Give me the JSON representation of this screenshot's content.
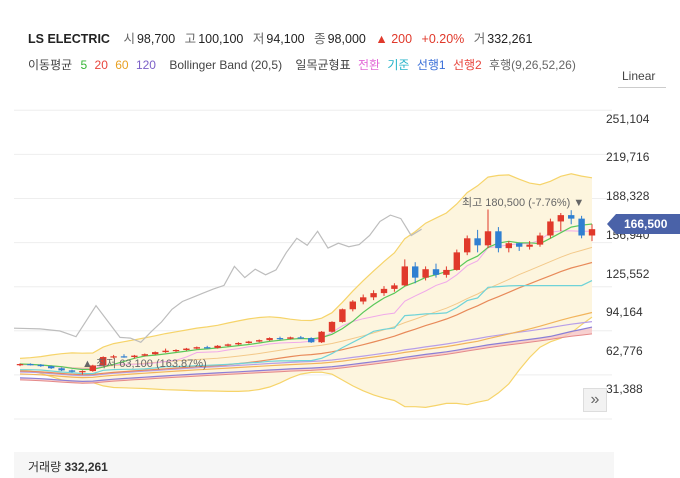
{
  "header": {
    "name": "LS ELECTRIC",
    "open_label": "시",
    "open": "98,700",
    "high_label": "고",
    "high": "100,100",
    "low_label": "저",
    "low": "94,100",
    "close_label": "종",
    "close": "98,000",
    "change_arrow": "▲",
    "change": "200",
    "change_pct": "+0.20%",
    "volume_label": "거",
    "volume": "332,261"
  },
  "indicators": {
    "ma_label": "이동평균",
    "ma5": "5",
    "ma20": "20",
    "ma60": "60",
    "ma120": "120",
    "bb": "Bollinger Band (20,5)",
    "ichimoku_label": "일목균형표",
    "ich_conv": "전환",
    "ich_base": "기준",
    "ich_lead1": "선행1",
    "ich_lead2": "선행2",
    "ich_lag": "후행(9,26,52,26)"
  },
  "scale_button": "Linear",
  "current_price": "166,500",
  "high_marker": "최고 180,500 (-7.76%) ▼",
  "low_marker": "▲ 최저 63,100 (163.87%)",
  "volume_panel": {
    "label": "거래량",
    "value": "332,261"
  },
  "jump_icon": "»",
  "chart_data": {
    "type": "candlestick",
    "ylim": [
      20000,
      262000
    ],
    "yticks": [
      "251,104",
      "219,716",
      "188,328",
      "156,940",
      "125,552",
      "94,164",
      "62,776",
      "31,388"
    ],
    "colors": {
      "up": "#e0392b",
      "down": "#2f7fd1",
      "ma5": "#35b535",
      "ma20": "#e8453c",
      "ma60": "#e8a020",
      "ma120": "#7b5fc7",
      "bb_fill": "#fdf4dc",
      "bb_line": "#f4d060"
    },
    "candles": [
      [
        70000,
        71000,
        69000,
        70500
      ],
      [
        70500,
        71000,
        69500,
        70000
      ],
      [
        70000,
        70500,
        68500,
        69000
      ],
      [
        69000,
        69500,
        67000,
        67500
      ],
      [
        67500,
        68000,
        65500,
        66000
      ],
      [
        66000,
        66500,
        64500,
        65000
      ],
      [
        65000,
        66000,
        63100,
        65500
      ],
      [
        65500,
        70000,
        65000,
        69500
      ],
      [
        69500,
        76000,
        69000,
        75500
      ],
      [
        75500,
        77000,
        74500,
        76000
      ],
      [
        76000,
        77500,
        75000,
        75500
      ],
      [
        75500,
        77000,
        74500,
        76500
      ],
      [
        76500,
        78000,
        76000,
        77500
      ],
      [
        77500,
        79500,
        77000,
        79000
      ],
      [
        79000,
        81500,
        78500,
        80000
      ],
      [
        80000,
        81000,
        79000,
        80500
      ],
      [
        80500,
        82000,
        80000,
        81500
      ],
      [
        81500,
        83000,
        81000,
        82500
      ],
      [
        82500,
        83500,
        81500,
        82000
      ],
      [
        82000,
        84000,
        81500,
        83500
      ],
      [
        83500,
        85000,
        83000,
        84500
      ],
      [
        84500,
        86000,
        84000,
        85500
      ],
      [
        85500,
        87000,
        85000,
        86500
      ],
      [
        86500,
        88000,
        86000,
        87500
      ],
      [
        87500,
        89500,
        87000,
        89000
      ],
      [
        89000,
        90000,
        87500,
        88500
      ],
      [
        88500,
        90000,
        88000,
        89500
      ],
      [
        89500,
        90500,
        88500,
        89000
      ],
      [
        89000,
        89500,
        85500,
        86000
      ],
      [
        86000,
        94000,
        85500,
        93500
      ],
      [
        93500,
        101000,
        93000,
        100500
      ],
      [
        100500,
        110000,
        100000,
        109500
      ],
      [
        109500,
        116000,
        108000,
        115000
      ],
      [
        115000,
        120000,
        113000,
        118000
      ],
      [
        118000,
        123000,
        116000,
        121000
      ],
      [
        121000,
        126000,
        119000,
        124000
      ],
      [
        124000,
        128000,
        122000,
        126500
      ],
      [
        126500,
        145000,
        126000,
        140000
      ],
      [
        140000,
        143000,
        128000,
        132000
      ],
      [
        132000,
        140000,
        130000,
        138000
      ],
      [
        138000,
        142000,
        132000,
        134000
      ],
      [
        134000,
        140000,
        132000,
        137500
      ],
      [
        137500,
        152000,
        137000,
        150000
      ],
      [
        150000,
        162000,
        148000,
        160000
      ],
      [
        160000,
        166000,
        150000,
        155000
      ],
      [
        155000,
        180500,
        153000,
        165000
      ],
      [
        165000,
        168000,
        150000,
        153000
      ],
      [
        153000,
        158000,
        150000,
        156500
      ],
      [
        156500,
        157000,
        151000,
        154000
      ],
      [
        154000,
        158000,
        152000,
        155500
      ],
      [
        155500,
        164000,
        154000,
        162000
      ],
      [
        162000,
        174000,
        160000,
        172000
      ],
      [
        172000,
        178000,
        165000,
        176500
      ],
      [
        176500,
        180000,
        170000,
        174000
      ],
      [
        174000,
        176000,
        160000,
        162000
      ],
      [
        162000,
        170000,
        158000,
        166500
      ]
    ]
  }
}
